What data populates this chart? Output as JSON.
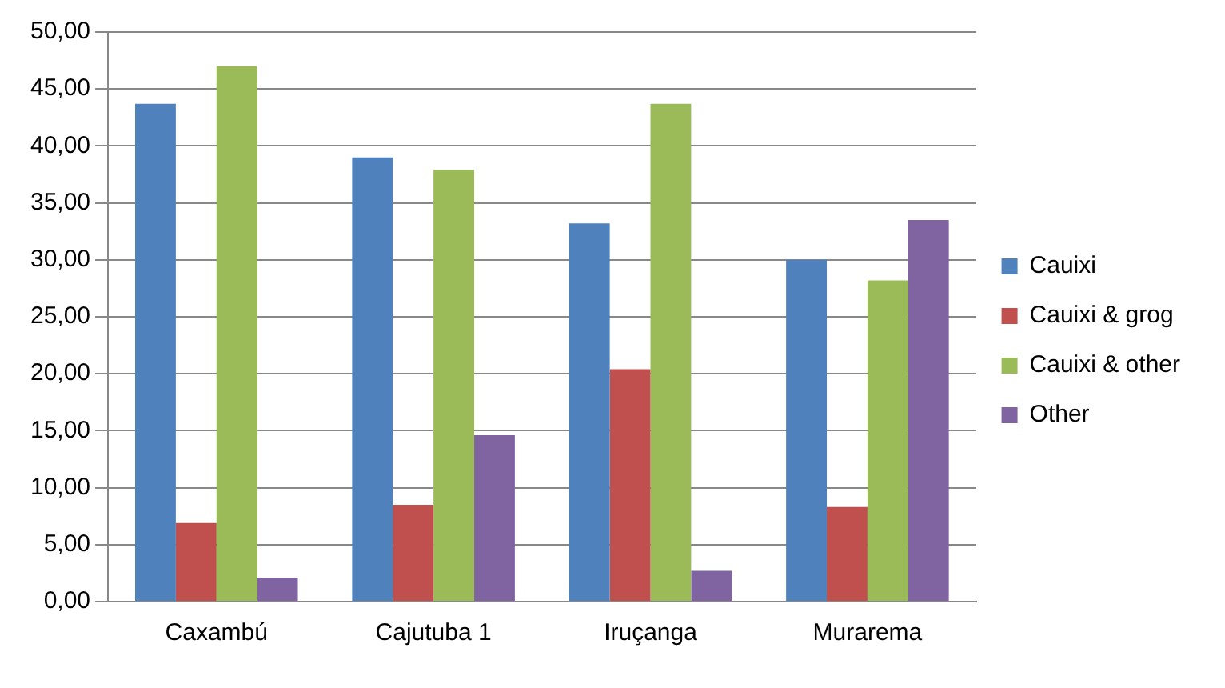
{
  "chart_data": {
    "type": "bar",
    "categories": [
      "Caxambú",
      "Cajutuba 1",
      "Iruçanga",
      "Murarema"
    ],
    "series": [
      {
        "name": "Cauixi",
        "color": "#4f81bd",
        "values": [
          43.7,
          39.0,
          33.2,
          30.0
        ]
      },
      {
        "name": "Cauixi & grog",
        "color": "#c0504d",
        "values": [
          6.9,
          8.5,
          20.4,
          8.3
        ]
      },
      {
        "name": "Cauixi & other",
        "color": "#9bbb59",
        "values": [
          47.0,
          37.9,
          43.7,
          28.2
        ]
      },
      {
        "name": "Other",
        "color": "#8064a2",
        "values": [
          2.1,
          14.6,
          2.7,
          33.5
        ]
      }
    ],
    "ylim": [
      0,
      50
    ],
    "yticks": [
      {
        "value": 0,
        "label": "0,00"
      },
      {
        "value": 5,
        "label": "5,00"
      },
      {
        "value": 10,
        "label": "10,00"
      },
      {
        "value": 15,
        "label": "15,00"
      },
      {
        "value": 20,
        "label": "20,00"
      },
      {
        "value": 25,
        "label": "25,00"
      },
      {
        "value": 30,
        "label": "30,00"
      },
      {
        "value": 35,
        "label": "35,00"
      },
      {
        "value": 40,
        "label": "40,00"
      },
      {
        "value": 45,
        "label": "45,00"
      },
      {
        "value": 50,
        "label": "50,00"
      }
    ],
    "grid": "y",
    "legend": "right"
  }
}
